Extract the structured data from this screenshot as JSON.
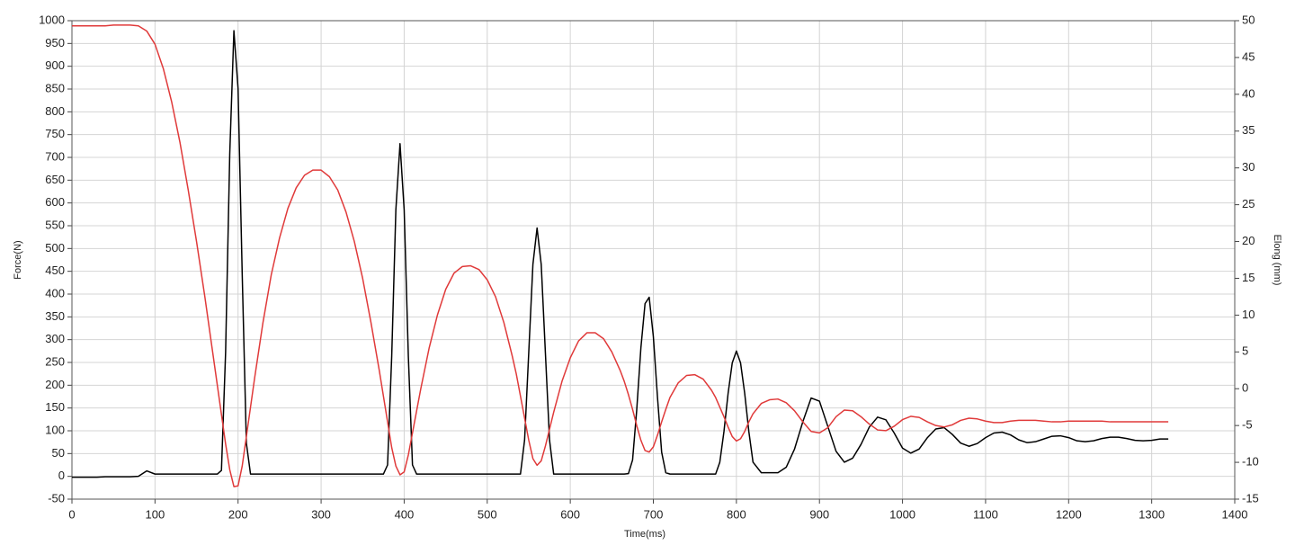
{
  "chart_data": {
    "type": "line",
    "xlabel": "Time(ms)",
    "ylabel": "Force(N)",
    "y2label": "Elong (mm)",
    "grid": true,
    "xlim": [
      0,
      1400
    ],
    "xticks": [
      0,
      100,
      200,
      300,
      400,
      500,
      600,
      700,
      800,
      900,
      1000,
      1100,
      1200,
      1300,
      1400
    ],
    "ylim": [
      -50,
      1000
    ],
    "yticks": [
      -50,
      0,
      50,
      100,
      150,
      200,
      250,
      300,
      350,
      400,
      450,
      500,
      550,
      600,
      650,
      700,
      750,
      800,
      850,
      900,
      950,
      1000
    ],
    "y2lim": [
      -15,
      50
    ],
    "y2ticks": [
      -15,
      -10,
      -5,
      0,
      5,
      10,
      15,
      20,
      25,
      30,
      35,
      40,
      45,
      50
    ],
    "x": [
      0,
      10,
      20,
      30,
      40,
      50,
      60,
      70,
      80,
      90,
      100,
      110,
      120,
      130,
      140,
      150,
      160,
      170,
      175,
      180,
      185,
      190,
      195,
      200,
      205,
      210,
      215,
      220,
      230,
      240,
      250,
      260,
      270,
      280,
      290,
      300,
      310,
      320,
      330,
      340,
      350,
      360,
      370,
      375,
      380,
      385,
      390,
      395,
      400,
      405,
      410,
      415,
      420,
      430,
      440,
      450,
      460,
      470,
      480,
      490,
      500,
      510,
      520,
      530,
      535,
      540,
      545,
      550,
      555,
      560,
      565,
      570,
      575,
      580,
      590,
      600,
      610,
      620,
      630,
      640,
      650,
      660,
      665,
      670,
      675,
      680,
      685,
      690,
      695,
      700,
      705,
      710,
      715,
      720,
      730,
      740,
      750,
      760,
      770,
      775,
      780,
      785,
      790,
      795,
      800,
      805,
      810,
      815,
      820,
      830,
      840,
      850,
      860,
      870,
      880,
      890,
      900,
      910,
      920,
      930,
      940,
      950,
      960,
      970,
      980,
      990,
      1000,
      1010,
      1020,
      1030,
      1040,
      1050,
      1060,
      1070,
      1080,
      1090,
      1100,
      1110,
      1120,
      1130,
      1140,
      1150,
      1160,
      1170,
      1180,
      1190,
      1200,
      1210,
      1220,
      1230,
      1240,
      1250,
      1260,
      1270,
      1280,
      1290,
      1300,
      1310,
      1320
    ],
    "series": [
      {
        "color": "#000000",
        "values": [
          -2,
          -2,
          -2,
          -2,
          -1,
          -1,
          -1,
          -1,
          0,
          12,
          5,
          5,
          5,
          5,
          5,
          5,
          5,
          5,
          5,
          13,
          272,
          708,
          978,
          851,
          444,
          73,
          5,
          5,
          5,
          5,
          5,
          5,
          5,
          5,
          5,
          5,
          5,
          5,
          5,
          5,
          5,
          5,
          5,
          5,
          25,
          264,
          585,
          730,
          585,
          264,
          25,
          5,
          5,
          5,
          5,
          5,
          5,
          5,
          5,
          5,
          5,
          5,
          5,
          5,
          5,
          5,
          80,
          272,
          465,
          545,
          465,
          272,
          80,
          5,
          5,
          5,
          5,
          5,
          5,
          5,
          5,
          5,
          5,
          6,
          36,
          146,
          282,
          379,
          393,
          307,
          173,
          53,
          8,
          5,
          5,
          5,
          5,
          5,
          5,
          5,
          31,
          98,
          182,
          249,
          275,
          249,
          182,
          98,
          31,
          8,
          8,
          8,
          20,
          60,
          120,
          172,
          165,
          110,
          55,
          31,
          40,
          70,
          108,
          130,
          124,
          95,
          62,
          51,
          60,
          85,
          104,
          107,
          92,
          73,
          66,
          72,
          85,
          95,
          97,
          91,
          80,
          74,
          76,
          82,
          88,
          89,
          85,
          78,
          76,
          78,
          83,
          86,
          86,
          83,
          79,
          78,
          79,
          82,
          82
        ]
      },
      {
        "color": "#e03a3a",
        "axis": "y2",
        "values": [
          49.3,
          49.3,
          49.3,
          49.3,
          49.3,
          49.4,
          49.4,
          49.4,
          49.3,
          48.6,
          46.8,
          43.5,
          39,
          33.5,
          27,
          20,
          12.5,
          4.5,
          0.5,
          -3.5,
          -7.5,
          -11,
          -13.3,
          -13.2,
          -10.5,
          -6.5,
          -2.5,
          1.5,
          9,
          15.5,
          20.5,
          24.5,
          27.3,
          29,
          29.7,
          29.7,
          28.8,
          27,
          24,
          20,
          15,
          9,
          2.5,
          -1,
          -4.5,
          -8,
          -10.5,
          -11.7,
          -11.3,
          -9,
          -6,
          -3,
          0,
          5.5,
          10,
          13.5,
          15.7,
          16.6,
          16.7,
          16.2,
          14.8,
          12.5,
          9,
          4.5,
          2,
          -1,
          -4,
          -7,
          -9.5,
          -10.4,
          -9.8,
          -7.8,
          -5.5,
          -3.2,
          1,
          4.2,
          6.5,
          7.6,
          7.6,
          6.8,
          5,
          2.5,
          1,
          -0.8,
          -2.8,
          -5,
          -7,
          -8.4,
          -8.6,
          -7.9,
          -6.3,
          -4.5,
          -2.8,
          -1.2,
          0.8,
          1.8,
          1.9,
          1.3,
          -0.2,
          -1.2,
          -2.5,
          -3.8,
          -5.2,
          -6.5,
          -7.1,
          -6.8,
          -5.8,
          -4.5,
          -3.4,
          -2,
          -1.5,
          -1.4,
          -1.9,
          -3,
          -4.5,
          -5.8,
          -6,
          -5.3,
          -3.8,
          -2.9,
          -3,
          -3.8,
          -4.8,
          -5.6,
          -5.7,
          -5.1,
          -4.2,
          -3.75,
          -3.9,
          -4.5,
          -5,
          -5.2,
          -4.9,
          -4.3,
          -4,
          -4.1,
          -4.4,
          -4.6,
          -4.6,
          -4.4,
          -4.3,
          -4.3,
          -4.3,
          -4.4,
          -4.5,
          -4.5,
          -4.4,
          -4.4,
          -4.4,
          -4.4,
          -4.4,
          -4.5,
          -4.5,
          -4.5,
          -4.5,
          -4.5,
          -4.5,
          -4.5,
          -4.5
        ]
      }
    ]
  }
}
